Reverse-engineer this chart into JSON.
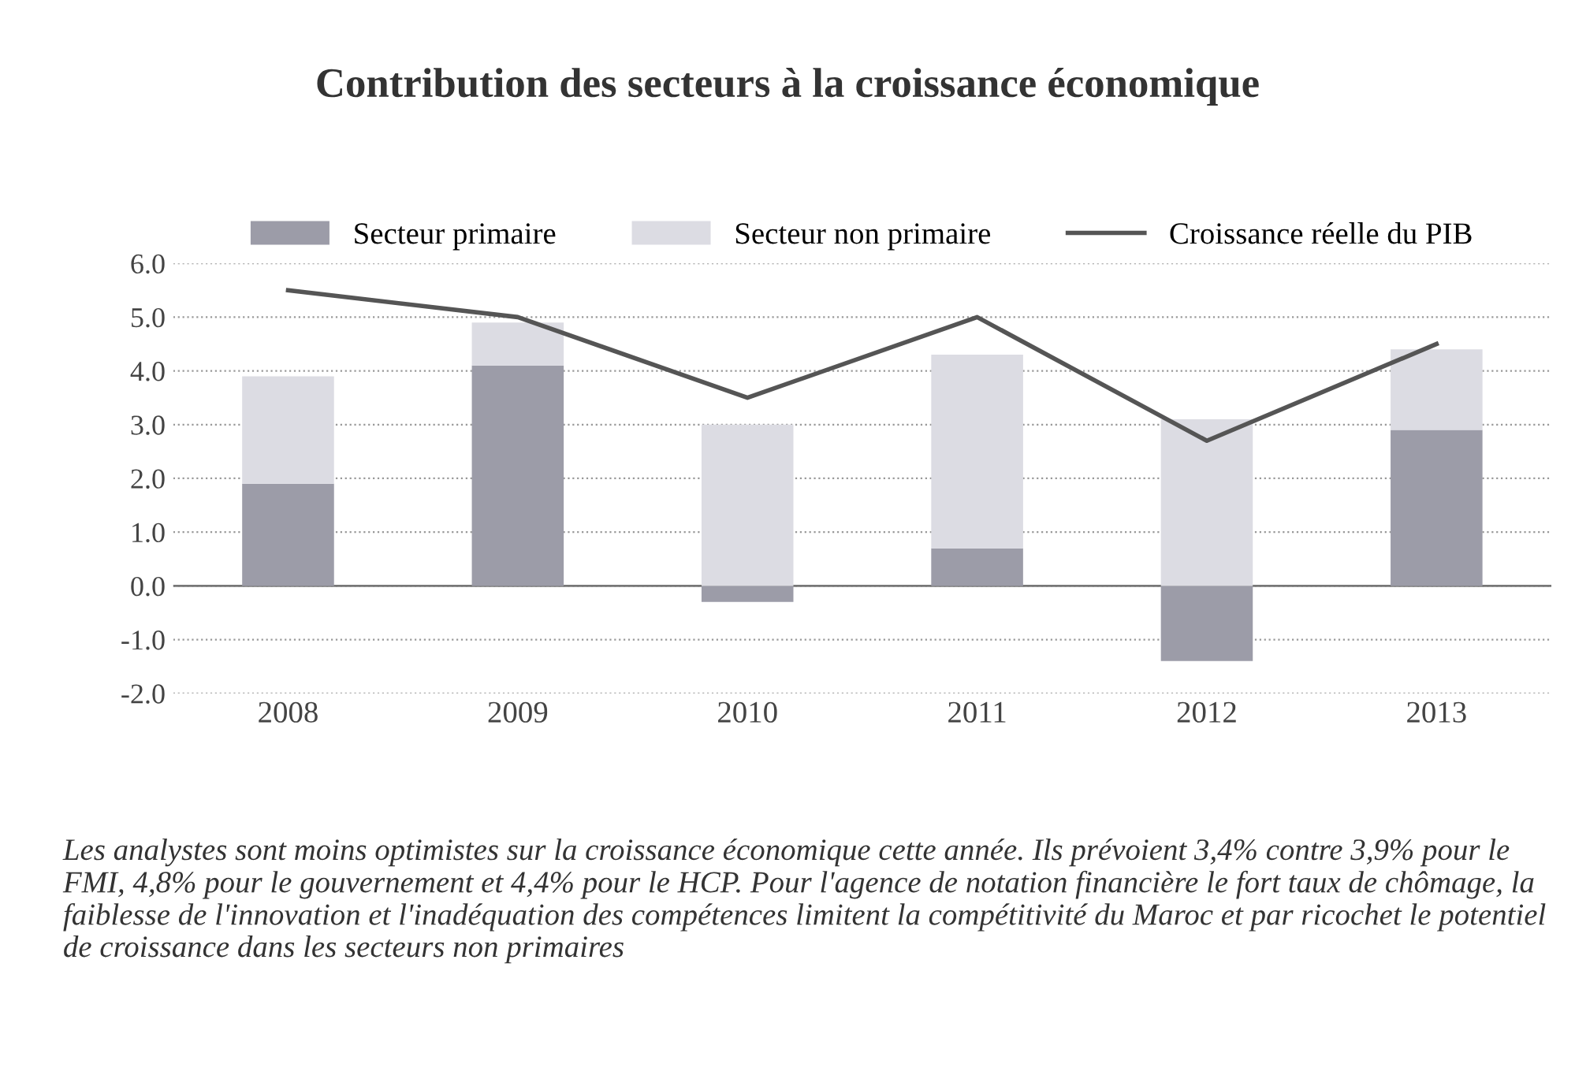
{
  "chart_data": {
    "type": "bar",
    "title": "Contribution des secteurs à la croissance économique",
    "categories": [
      "2008",
      "2009",
      "2010",
      "2011",
      "2012",
      "2013"
    ],
    "stacked": true,
    "series": [
      {
        "name": "Secteur primaire",
        "color": "#9c9ca8",
        "values": [
          1.9,
          4.1,
          -0.3,
          0.7,
          -1.4,
          2.9
        ]
      },
      {
        "name": "Secteur non primaire",
        "color": "#dcdce3",
        "values": [
          2.0,
          0.8,
          3.0,
          3.6,
          3.1,
          1.5
        ]
      },
      {
        "name": "Croissance réelle du PIB",
        "type": "line",
        "color": "#555555",
        "values": [
          5.5,
          5.0,
          3.5,
          5.0,
          2.7,
          4.5
        ]
      }
    ],
    "ylim": [
      -2.0,
      6.0
    ],
    "yticks": [
      {
        "value": -2,
        "label": "-2.0"
      },
      {
        "value": -1,
        "label": "-1.0"
      },
      {
        "value": 0,
        "label": "0.0"
      },
      {
        "value": 1,
        "label": "1.0"
      },
      {
        "value": 2,
        "label": "2.0"
      },
      {
        "value": 3,
        "label": "3.0"
      },
      {
        "value": 4,
        "label": "4.0"
      },
      {
        "value": 5,
        "label": "5.0"
      },
      {
        "value": 6,
        "label": "6.0"
      }
    ],
    "grid": "y",
    "legend": "top",
    "marker": "none",
    "line_style": "solid",
    "annotations": [
      "Les analystes sont moins optimistes sur la croissance économique cette année. Ils prévoient 3,4% contre 3,9% pour le FMI, 4,8% pour le gouvernement et 4,4% pour le HCP. Pour l'agence de notation financière le fort taux de chômage, la faiblesse de l'innovation et l'inadéquation des compétences limitent la compétitivité du Maroc et par ricochet le potentiel de croissance dans les secteurs non primaires"
    ]
  }
}
